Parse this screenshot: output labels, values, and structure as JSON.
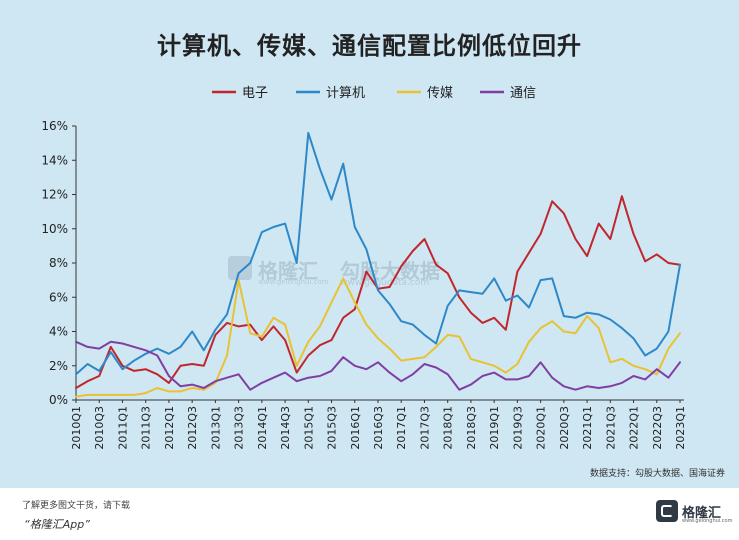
{
  "title": "计算机、传媒、通信配置比例低位回升",
  "source": "数据支持：勾股大数据、国海证券",
  "footer": {
    "line1": "了解更多图文干货，请下载",
    "line2": "“格隆汇App”",
    "logo_name": "格隆汇",
    "logo_url": "www.gelonghui.com"
  },
  "watermark": {
    "name": "格隆汇",
    "url": "www.gelonghui.com",
    "sub": "勾股大数据",
    "sub_url": "www.gogudata.com"
  },
  "chart_data": {
    "type": "line",
    "title": "计算机、传媒、通信配置比例低位回升",
    "xlabel": "",
    "ylabel": "",
    "ylim": [
      0,
      16
    ],
    "y_ticks": [
      "0%",
      "2%",
      "4%",
      "6%",
      "8%",
      "10%",
      "12%",
      "14%",
      "16%"
    ],
    "y_tick_values": [
      0,
      2,
      4,
      6,
      8,
      10,
      12,
      14,
      16
    ],
    "grid": false,
    "legend_position": "top",
    "x": [
      "2010Q1",
      "2010Q2",
      "2010Q3",
      "2010Q4",
      "2011Q1",
      "2011Q2",
      "2011Q3",
      "2011Q4",
      "2012Q1",
      "2012Q2",
      "2012Q3",
      "2012Q4",
      "2013Q1",
      "2013Q2",
      "2013Q3",
      "2013Q4",
      "2014Q1",
      "2014Q2",
      "2014Q3",
      "2014Q4",
      "2015Q1",
      "2015Q2",
      "2015Q3",
      "2015Q4",
      "2016Q1",
      "2016Q2",
      "2016Q3",
      "2016Q4",
      "2017Q1",
      "2017Q2",
      "2017Q3",
      "2017Q4",
      "2018Q1",
      "2018Q2",
      "2018Q3",
      "2018Q4",
      "2019Q1",
      "2019Q2",
      "2019Q3",
      "2019Q4",
      "2020Q1",
      "2020Q2",
      "2020Q3",
      "2020Q4",
      "2021Q1",
      "2021Q2",
      "2021Q3",
      "2021Q4",
      "2022Q1",
      "2022Q2",
      "2022Q3",
      "2022Q4",
      "2023Q1"
    ],
    "x_tick_labels": [
      "2010Q1",
      "2010Q3",
      "2011Q1",
      "2011Q3",
      "2012Q1",
      "2012Q3",
      "2013Q1",
      "2013Q3",
      "2014Q1",
      "2014Q3",
      "2015Q1",
      "2015Q3",
      "2016Q1",
      "2016Q3",
      "2017Q1",
      "2017Q3",
      "2018Q1",
      "2018Q3",
      "2019Q1",
      "2019Q3",
      "2020Q1",
      "2020Q3",
      "2021Q1",
      "2021Q3",
      "2022Q1",
      "2022Q3",
      "2023Q1"
    ],
    "series": [
      {
        "name": "电子",
        "color": "#c0272d",
        "values": [
          0.7,
          1.1,
          1.4,
          3.1,
          2.0,
          1.7,
          1.8,
          1.5,
          1.0,
          2.0,
          2.1,
          2.0,
          3.8,
          4.5,
          4.3,
          4.4,
          3.5,
          4.3,
          3.5,
          1.6,
          2.6,
          3.2,
          3.5,
          4.8,
          5.3,
          7.5,
          6.5,
          6.6,
          7.8,
          8.7,
          9.4,
          7.9,
          7.4,
          6.0,
          5.1,
          4.5,
          4.8,
          4.1,
          7.5,
          8.6,
          9.7,
          11.6,
          10.9,
          9.4,
          8.4,
          10.3,
          9.4,
          11.9,
          9.7,
          8.1,
          8.5,
          8.0,
          7.9
        ]
      },
      {
        "name": "计算机",
        "color": "#2e88c8",
        "values": [
          1.5,
          2.1,
          1.7,
          2.8,
          1.8,
          2.3,
          2.7,
          3.0,
          2.7,
          3.1,
          4.0,
          2.9,
          4.1,
          5.0,
          7.4,
          8.0,
          9.8,
          10.1,
          10.3,
          8.0,
          15.6,
          13.5,
          11.7,
          13.8,
          10.1,
          8.8,
          6.4,
          5.6,
          4.6,
          4.4,
          3.8,
          3.3,
          5.5,
          6.4,
          6.3,
          6.2,
          7.1,
          5.8,
          6.1,
          5.4,
          7.0,
          7.1,
          4.9,
          4.8,
          5.1,
          5.0,
          4.7,
          4.2,
          3.6,
          2.6,
          3.0,
          4.0,
          7.9
        ]
      },
      {
        "name": "传媒",
        "color": "#e9c232",
        "values": [
          0.2,
          0.3,
          0.3,
          0.3,
          0.3,
          0.3,
          0.4,
          0.7,
          0.5,
          0.5,
          0.7,
          0.6,
          1.0,
          2.6,
          7.0,
          3.9,
          3.7,
          4.8,
          4.4,
          2.0,
          3.4,
          4.3,
          5.7,
          7.1,
          5.7,
          4.4,
          3.6,
          3.0,
          2.3,
          2.4,
          2.5,
          3.1,
          3.8,
          3.7,
          2.4,
          2.2,
          2.0,
          1.6,
          2.1,
          3.4,
          4.2,
          4.6,
          4.0,
          3.9,
          4.9,
          4.2,
          2.2,
          2.4,
          2.0,
          1.8,
          1.5,
          3.0,
          3.9
        ]
      },
      {
        "name": "通信",
        "color": "#7f3fa2",
        "values": [
          3.4,
          3.1,
          3.0,
          3.4,
          3.3,
          3.1,
          2.9,
          2.6,
          1.4,
          0.8,
          0.9,
          0.7,
          1.1,
          1.3,
          1.5,
          0.6,
          1.0,
          1.3,
          1.6,
          1.1,
          1.3,
          1.4,
          1.7,
          2.5,
          2.0,
          1.8,
          2.2,
          1.6,
          1.1,
          1.5,
          2.1,
          1.9,
          1.5,
          0.6,
          0.9,
          1.4,
          1.6,
          1.2,
          1.2,
          1.4,
          2.2,
          1.3,
          0.8,
          0.6,
          0.8,
          0.7,
          0.8,
          1.0,
          1.4,
          1.2,
          1.8,
          1.3,
          2.2
        ]
      }
    ]
  }
}
